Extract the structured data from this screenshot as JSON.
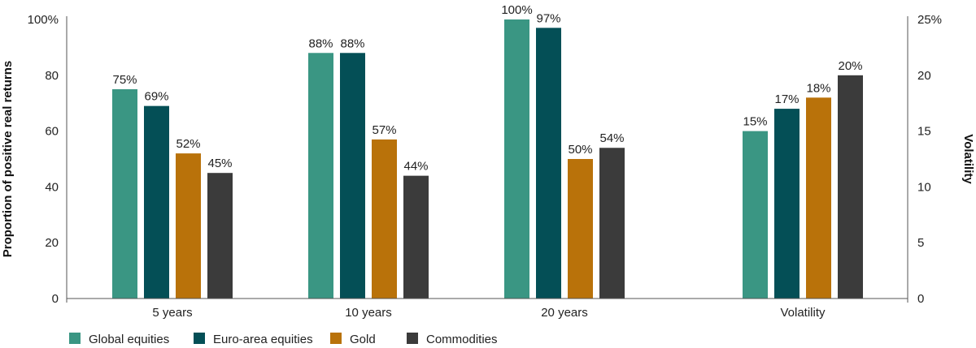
{
  "chart_data": {
    "type": "bar",
    "categories": [
      "5 years",
      "10 years",
      "20 years",
      "Volatility"
    ],
    "series": [
      {
        "name": "Global equities",
        "color": "#3a9683",
        "values": [
          75,
          88,
          100,
          15
        ],
        "labels": [
          "75%",
          "88%",
          "100%",
          "15%"
        ]
      },
      {
        "name": "Euro-area equities",
        "color": "#044f56",
        "values": [
          69,
          88,
          97,
          17
        ],
        "labels": [
          "69%",
          "88%",
          "97%",
          "17%"
        ]
      },
      {
        "name": "Gold",
        "color": "#b9720a",
        "values": [
          52,
          57,
          50,
          18
        ],
        "labels": [
          "52%",
          "57%",
          "50%",
          "18%"
        ]
      },
      {
        "name": "Commodities",
        "color": "#3b3b3b",
        "values": [
          45,
          44,
          54,
          20
        ],
        "labels": [
          "45%",
          "44%",
          "54%",
          "20%"
        ]
      }
    ],
    "secondary_axis_category": "Volatility",
    "y_left": {
      "label": "Proportion of positive real returns",
      "range": [
        0,
        100
      ],
      "ticks": [
        "0",
        "20",
        "40",
        "60",
        "80",
        "100%"
      ]
    },
    "y_right": {
      "label": "Volatility",
      "range": [
        0,
        25
      ],
      "ticks": [
        "0",
        "5",
        "10",
        "15",
        "20",
        "25%"
      ]
    },
    "legend_position": "bottom-left",
    "grid": false
  }
}
